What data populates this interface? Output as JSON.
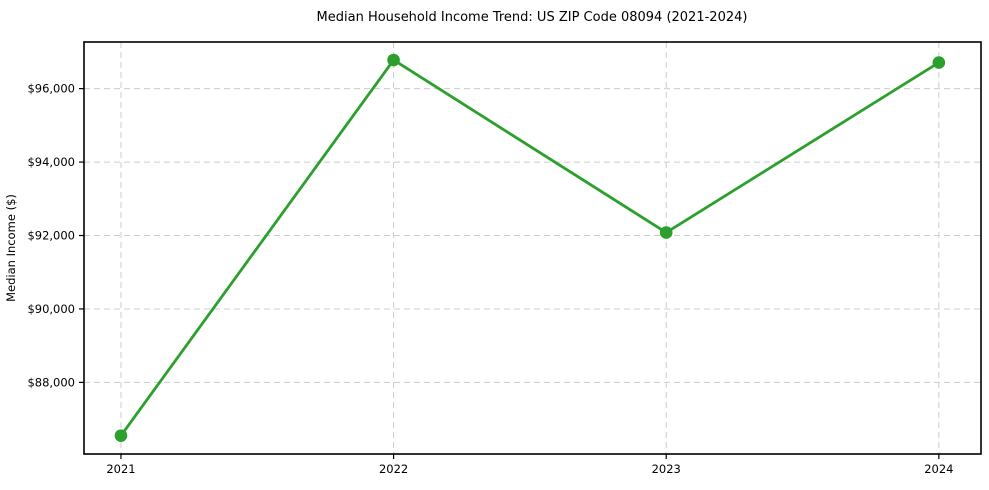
{
  "chart_data": {
    "type": "line",
    "title": "Median Household Income Trend: US ZIP Code 08094 (2021-2024)",
    "xlabel": "",
    "ylabel": "Median Income ($)",
    "categories": [
      "2021",
      "2022",
      "2023",
      "2024"
    ],
    "values": [
      86550,
      96780,
      92080,
      96710
    ],
    "ylim": [
      86050,
      97270
    ],
    "yticks": [
      88000,
      90000,
      92000,
      94000,
      96000
    ],
    "ytick_prefix": "$",
    "grid": "both-dashed",
    "legend_position": "none",
    "marker": "circle",
    "colors": {
      "line": "#2ca02c",
      "marker": "#2ca02c",
      "grid": "#cccccc",
      "spine": "#000000",
      "text": "#000000",
      "background": "#ffffff"
    }
  }
}
